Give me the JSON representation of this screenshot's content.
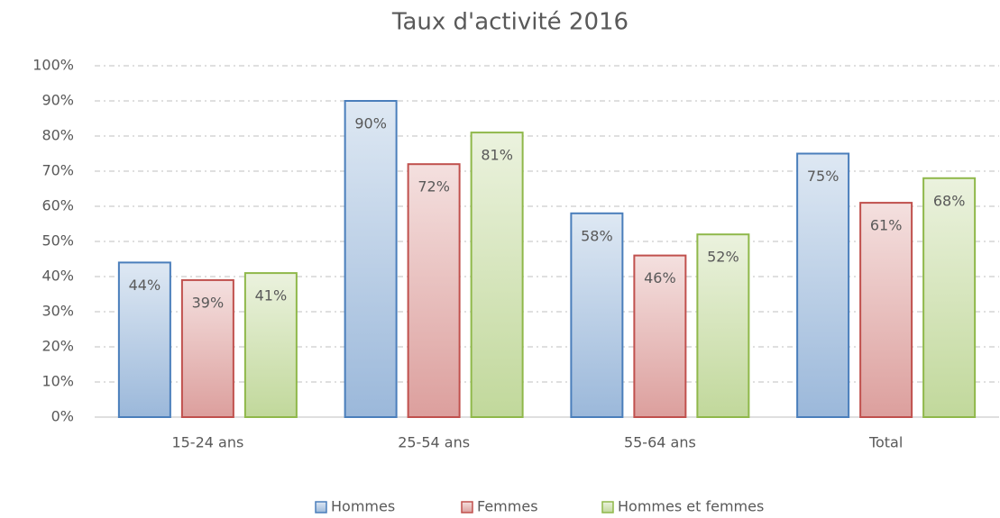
{
  "chart_data": {
    "type": "bar",
    "title": "Taux d'activité 2016",
    "categories": [
      "15-24 ans",
      "25-54 ans",
      "55-64 ans",
      "Total"
    ],
    "series": [
      {
        "name": "Hommes",
        "color": "#4a7ebb",
        "values": [
          44,
          90,
          58,
          75
        ],
        "value_labels": [
          "44%",
          "90%",
          "58%",
          "75%"
        ]
      },
      {
        "name": "Femmes",
        "color": "#c0504d",
        "values": [
          39,
          72,
          46,
          61
        ],
        "value_labels": [
          "39%",
          "72%",
          "46%",
          "61%"
        ]
      },
      {
        "name": "Hommes et femmes",
        "color": "#8fb84a",
        "values": [
          41,
          81,
          52,
          68
        ],
        "value_labels": [
          "41%",
          "81%",
          "52%",
          "68%"
        ]
      }
    ],
    "ylim": [
      0,
      100
    ],
    "yticks": [
      {
        "value": 0,
        "label": "0%"
      },
      {
        "value": 10,
        "label": "10%"
      },
      {
        "value": 20,
        "label": "20%"
      },
      {
        "value": 30,
        "label": "30%"
      },
      {
        "value": 40,
        "label": "40%"
      },
      {
        "value": 50,
        "label": "50%"
      },
      {
        "value": 60,
        "label": "60%"
      },
      {
        "value": 70,
        "label": "70%"
      },
      {
        "value": 80,
        "label": "80%"
      },
      {
        "value": 90,
        "label": "90%"
      },
      {
        "value": 100,
        "label": "100%"
      }
    ],
    "grid": true,
    "legend": "bottom"
  }
}
